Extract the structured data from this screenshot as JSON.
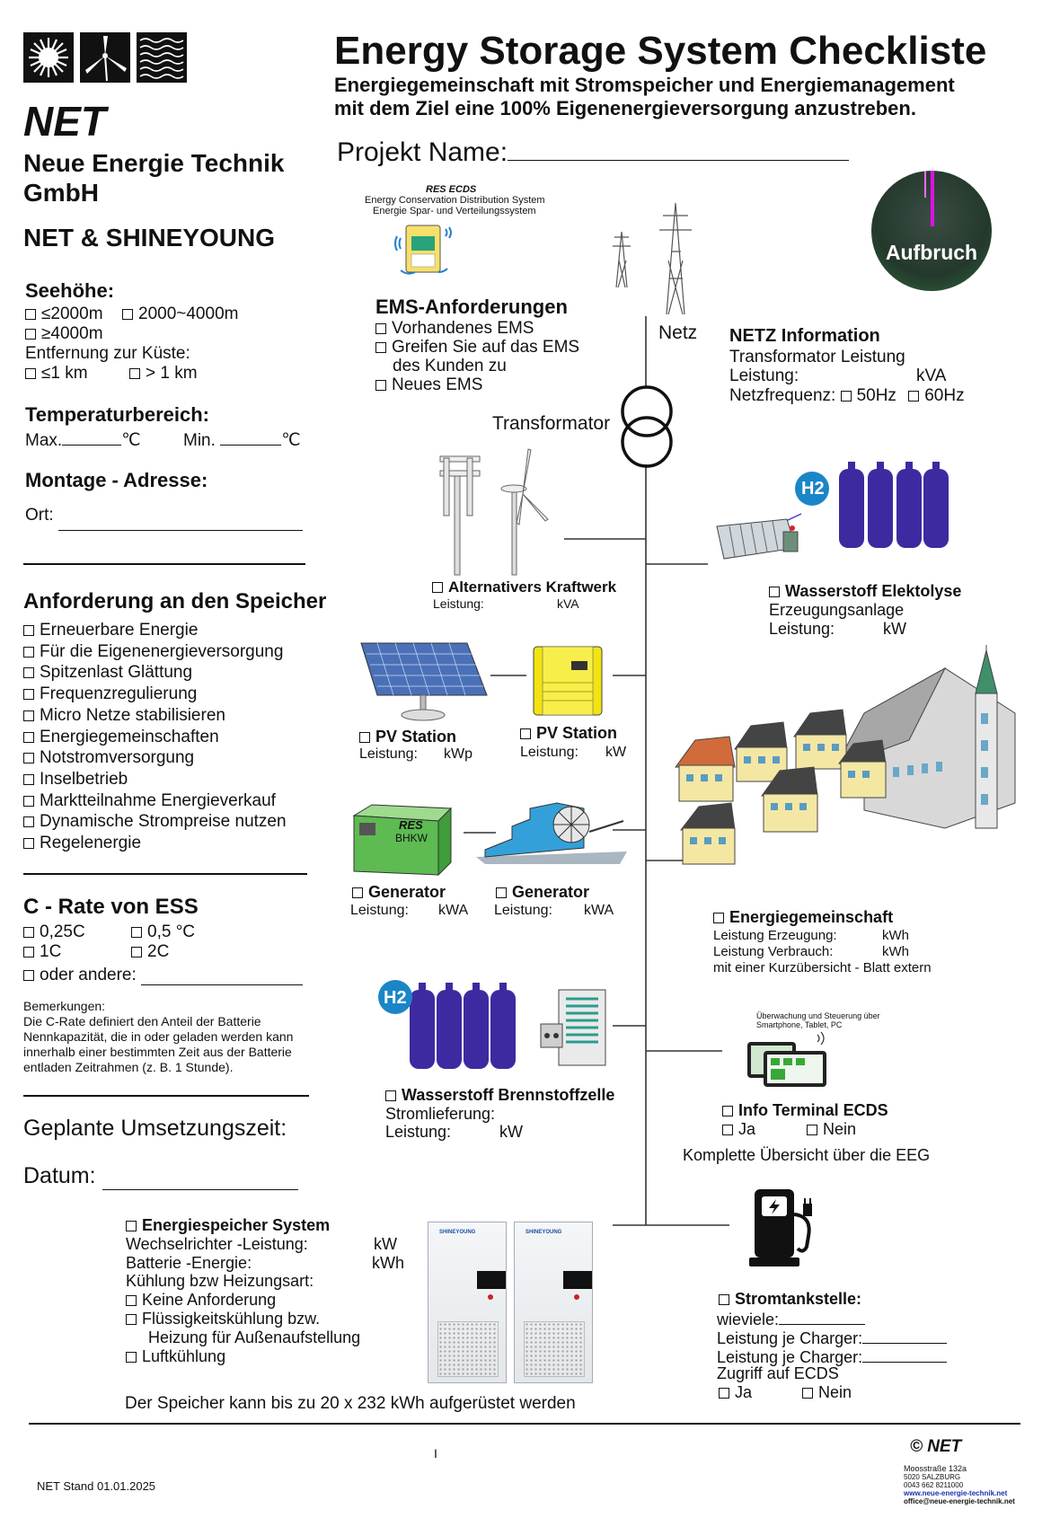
{
  "logo": {
    "icons": [
      "sun-icon",
      "wind-turbine-icon",
      "water-waves-icon"
    ]
  },
  "company": {
    "short": "NET",
    "name_line1": "Neue Energie Technik",
    "name_line2": "GmbH",
    "partners": "NET & SHINEYOUNG"
  },
  "header": {
    "title": "Energy Storage System Checkliste",
    "subtitle_line1": "Energiegemeinschaft mit Stromspeicher und Energiemanagement",
    "subtitle_line2": "mit dem Ziel eine 100% Eigenenergieversorgung anzustreben.",
    "project_label": "Projekt Name:"
  },
  "left": {
    "seehoehe": {
      "title": "Seehöhe:",
      "opt1": "≤2000m",
      "opt2": "2000~4000m",
      "opt3": "≥4000m",
      "coast_label": "Entfernung zur Küste:",
      "coast1": "≤1 km",
      "coast2": "> 1 km"
    },
    "temperatur": {
      "title": "Temperaturbereich:",
      "max": "Max.",
      "min": "Min.",
      "unit": "℃"
    },
    "montage": {
      "title": "Montage - Adresse:",
      "ort": "Ort:"
    },
    "anforderung": {
      "title": "Anforderung an den Speicher",
      "items": [
        "Erneuerbare Energie",
        "Für die Eigenenergieversorgung",
        "Spitzenlast Glättung",
        "Frequenzregulierung",
        "Micro Netze stabilisieren",
        "Energiegemeinschaften",
        "Notstromversorgung",
        "Inselbetrieb",
        "Marktteilnahme Energieverkauf",
        "Dynamische Strompreise nutzen",
        "Regelenergie"
      ]
    },
    "crate": {
      "title": "C - Rate von ESS",
      "o1": "0,25C",
      "o2": "0,5 °C",
      "o3": "1C",
      "o4": "2C",
      "o5": "oder andere:"
    },
    "bemerkungen": {
      "title": "Bemerkungen:",
      "l1": "Die C-Rate definiert den Anteil der Batterie",
      "l2": "Nennkapazität, die in oder geladen werden kann",
      "l3": "innerhalb einer bestimmten Zeit aus der Batterie",
      "l4": "entladen Zeitrahmen (z. B. 1 Stunde)."
    },
    "umsetzung": "Geplante Umsetzungszeit:",
    "datum": "Datum:"
  },
  "ems": {
    "caption_title": "RES ECDS",
    "caption_l1": "Energy Conservation Distribution System",
    "caption_l2": "Energie Spar- und Verteilungssystem",
    "title": "EMS-Anforderungen",
    "o1": "Vorhandenes EMS",
    "o2a": "Greifen Sie auf das EMS",
    "o2b": "des Kunden zu",
    "o3": "Neues EMS"
  },
  "grid": {
    "netz": "Netz",
    "transformator": "Transformator",
    "badge": "Aufbruch",
    "info_title": "NETZ Information",
    "info_l1": "Transformator Leistung",
    "info_l2": "Leistung:",
    "info_l2_unit": "kVA",
    "info_l3": "Netzfrequenz:",
    "f1": "50Hz",
    "f2": "60Hz"
  },
  "alt": {
    "title": "Alternativers Kraftwerk",
    "leistung": "Leistung:",
    "unit": "kVA"
  },
  "h2elektro": {
    "badge": "H2",
    "title": "Wasserstoff Elektolyse",
    "l1": "Erzeugungsanlage",
    "l2": "Leistung:",
    "unit": "kW"
  },
  "pv1": {
    "title": "PV Station",
    "leistung": "Leistung:",
    "unit": "kWp"
  },
  "pv2": {
    "title": "PV Station",
    "leistung": "Leistung:",
    "unit": "kW"
  },
  "gen1": {
    "label1": "RES",
    "label2": "BHKW",
    "title": "Generator",
    "leistung": "Leistung:",
    "unit": "kWA"
  },
  "gen2": {
    "title": "Generator",
    "leistung": "Leistung:",
    "unit": "kWA"
  },
  "eg": {
    "title": "Energiegemeinschaft",
    "l1": "Leistung Erzeugung:",
    "u1": "kWh",
    "l2": "Leistung Verbrauch:",
    "u2": "kWh",
    "l3": "mit einer Kurzübersicht - Blatt extern"
  },
  "h2brenn": {
    "badge": "H2",
    "title": "Wasserstoff Brennstoffzelle",
    "l1": "Stromlieferung:",
    "l2": "Leistung:",
    "unit": "kW"
  },
  "terminal": {
    "caption1": "Überwachung und Steuerung über",
    "caption2": "Smartphone, Tablet, PC",
    "title": "Info Terminal ECDS",
    "ja": "Ja",
    "nein": "Nein",
    "summary": "Komplette Übersicht über die EEG"
  },
  "ess": {
    "brand": "SHINEYOUNG",
    "title": "Energiespeicher System",
    "l1": "Wechselrichter -Leistung:",
    "u1": "kW",
    "l2": "Batterie -Energie:",
    "u2": "kWh",
    "l3": "Kühlung bzw Heizungsart:",
    "o1": "Keine Anforderung",
    "o2a": "Flüssigkeitskühlung bzw.",
    "o2b": "Heizung für Außenaufstellung",
    "o3": "Luftkühlung",
    "note": "Der Speicher kann bis zu 20 x 232 kWh aufgerüstet werden"
  },
  "charge": {
    "title": "Stromtankstelle:",
    "l1": "wieviele:",
    "l2": "Leistung je Charger:",
    "l3": "Leistung je Charger:",
    "l4": "Zugriff auf ECDS",
    "ja": "Ja",
    "nein": "Nein"
  },
  "footer": {
    "stand": "NET Stand 01.01.2025",
    "page_mark": "I",
    "copy": "© NET",
    "addr1": "Moosstraße 132a",
    "addr2": "5020 SALZBURG",
    "phone": "0043 662 8211000",
    "web": "www.neue-energie-technik.net",
    "mail": "office@neue-energie-technik.net"
  }
}
